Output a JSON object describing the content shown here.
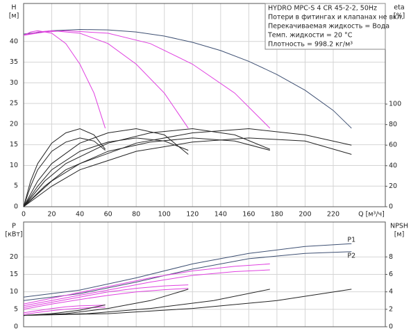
{
  "chart_data": [
    {
      "type": "line",
      "ylabel": "H",
      "yunit": "[м]",
      "y2label": "eta",
      "y2unit": "[%]",
      "xlabel": "Q [м³/ч]",
      "annotations": [
        "HYDRO MPC-S 4 CR 45-2-2, 50Hz",
        "Потери в фитингах и клапанах не вкл.",
        "Перекачиваемая жидкость = Вода",
        "Темп. жидкости = 20 °C",
        "Плотность = 998.2 кг/м³"
      ],
      "xlim": [
        0,
        257
      ],
      "xticks": [
        0,
        20,
        40,
        60,
        80,
        100,
        120,
        140,
        160,
        180,
        200,
        220
      ],
      "ylim": [
        0,
        49.2
      ],
      "yticks": [
        0,
        5,
        10,
        15,
        20,
        25,
        30,
        35,
        40
      ],
      "y2lim": [
        0,
        198
      ],
      "y2ticks": [
        0,
        20,
        40,
        60,
        80,
        100
      ],
      "grid": true,
      "series": [
        {
          "color": "#3d4f72",
          "x": [
            0,
            20,
            40,
            60,
            80,
            100,
            120,
            140,
            160,
            180,
            200,
            220,
            233
          ],
          "values": [
            41.8,
            42.6,
            42.9,
            42.8,
            42.3,
            41.3,
            39.8,
            37.8,
            35.2,
            32,
            28.2,
            23.3,
            19
          ]
        },
        {
          "color": "#e040e0",
          "x": [
            0,
            5,
            10,
            20,
            30,
            40,
            50,
            58
          ],
          "values": [
            41.5,
            42.3,
            42.6,
            42,
            39.5,
            34.5,
            27.5,
            19
          ]
        },
        {
          "color": "#e040e0",
          "x": [
            0,
            10,
            20,
            40,
            60,
            80,
            100,
            117
          ],
          "values": [
            41.5,
            42.3,
            42.6,
            42,
            39.5,
            34.5,
            27.5,
            19
          ]
        },
        {
          "color": "#e040e0",
          "x": [
            0,
            15,
            30,
            60,
            90,
            120,
            150,
            175
          ],
          "values": [
            41.5,
            42.3,
            42.6,
            42,
            39.5,
            34.5,
            27.5,
            19
          ]
        },
        {
          "color": "#222222",
          "axis": "y2",
          "x": [
            0,
            5,
            10,
            20,
            30,
            40,
            50,
            58
          ],
          "values": [
            0,
            25,
            42,
            62,
            72,
            76,
            70,
            56
          ]
        },
        {
          "color": "#222222",
          "axis": "y2",
          "x": [
            0,
            5,
            10,
            20,
            30,
            40,
            50,
            58
          ],
          "values": [
            0,
            20,
            36,
            54,
            63,
            67,
            64,
            55
          ]
        },
        {
          "color": "#222222",
          "axis": "y2",
          "x": [
            0,
            10,
            20,
            40,
            60,
            80,
            100,
            117
          ],
          "values": [
            0,
            25,
            42,
            62,
            72,
            76,
            70,
            51
          ]
        },
        {
          "color": "#222222",
          "axis": "y2",
          "x": [
            0,
            10,
            20,
            40,
            60,
            80,
            100,
            117
          ],
          "values": [
            0,
            20,
            36,
            54,
            63,
            67,
            64,
            55
          ]
        },
        {
          "color": "#222222",
          "axis": "y2",
          "x": [
            0,
            15,
            30,
            60,
            90,
            120,
            150,
            175
          ],
          "values": [
            0,
            25,
            42,
            62,
            72,
            76,
            70,
            56
          ]
        },
        {
          "color": "#222222",
          "axis": "y2",
          "x": [
            0,
            15,
            30,
            60,
            90,
            120,
            150,
            175
          ],
          "values": [
            0,
            20,
            36,
            54,
            63,
            67,
            64,
            55
          ]
        },
        {
          "color": "#222222",
          "axis": "y2",
          "x": [
            0,
            20,
            40,
            80,
            120,
            160,
            200,
            233
          ],
          "values": [
            0,
            25,
            42,
            62,
            72,
            76,
            70,
            60
          ]
        },
        {
          "color": "#222222",
          "axis": "y2",
          "x": [
            0,
            20,
            40,
            80,
            120,
            160,
            200,
            233
          ],
          "values": [
            0,
            20,
            36,
            54,
            63,
            67,
            64,
            51
          ]
        }
      ]
    },
    {
      "type": "line",
      "ylabel": "P",
      "yunit": "[кВт]",
      "y2label": "NPSH",
      "y2unit": "[м]",
      "xlim": [
        0,
        257
      ],
      "xticks": [
        0,
        20,
        40,
        60,
        80,
        100,
        120,
        140,
        160,
        180,
        200,
        220
      ],
      "ylim": [
        0,
        30
      ],
      "yticks": [
        0,
        5,
        10,
        15,
        20
      ],
      "y2lim": [
        0,
        12
      ],
      "y2ticks": [
        0,
        2,
        4,
        6,
        8
      ],
      "grid": true,
      "series": [
        {
          "name": "P1",
          "color": "#3d4f72",
          "x": [
            0,
            40,
            80,
            120,
            160,
            200,
            233
          ],
          "values": [
            8.5,
            10.5,
            14,
            18,
            21,
            23,
            23.8
          ]
        },
        {
          "name": "P2",
          "color": "#3d4f72",
          "x": [
            0,
            40,
            80,
            120,
            160,
            200,
            233
          ],
          "values": [
            7.5,
            9.5,
            12.8,
            16.5,
            19.5,
            21,
            21.5
          ]
        },
        {
          "color": "#e040e0",
          "x": [
            0,
            30,
            60,
            90,
            120,
            150,
            175
          ],
          "values": [
            6.5,
            9,
            11.5,
            14,
            16,
            17.3,
            18
          ]
        },
        {
          "color": "#e040e0",
          "x": [
            0,
            30,
            60,
            90,
            120,
            150,
            175
          ],
          "values": [
            6,
            8.3,
            10.5,
            12.8,
            14.7,
            15.8,
            16.3
          ]
        },
        {
          "color": "#e040e0",
          "x": [
            0,
            20,
            40,
            60,
            80,
            100,
            117
          ],
          "values": [
            5.5,
            7,
            8.5,
            10,
            11,
            11.7,
            12
          ]
        },
        {
          "color": "#e040e0",
          "x": [
            0,
            20,
            40,
            60,
            80,
            100,
            117
          ],
          "values": [
            5,
            6.5,
            7.8,
            9,
            10,
            10.6,
            11
          ]
        },
        {
          "color": "#e040e0",
          "x": [
            0,
            10,
            20,
            30,
            40,
            50,
            58
          ],
          "values": [
            4,
            4.6,
            5.2,
            5.7,
            6,
            6.1,
            6.2
          ]
        },
        {
          "color": "#e040e0",
          "x": [
            0,
            10,
            20,
            30,
            40,
            50,
            58
          ],
          "values": [
            3.5,
            4.1,
            4.6,
            5,
            5.3,
            5.5,
            5.6
          ]
        },
        {
          "color": "#222222",
          "axis": "y2",
          "x": [
            0,
            20,
            40,
            58
          ],
          "values": [
            1.3,
            1.5,
            1.9,
            2.5
          ]
        },
        {
          "color": "#222222",
          "axis": "y2",
          "x": [
            0,
            30,
            60,
            90,
            117
          ],
          "values": [
            1.3,
            1.5,
            2.1,
            3,
            4.3
          ]
        },
        {
          "color": "#222222",
          "axis": "y2",
          "x": [
            0,
            45,
            90,
            135,
            175
          ],
          "values": [
            1.3,
            1.5,
            2.1,
            3,
            4.3
          ]
        },
        {
          "color": "#222222",
          "axis": "y2",
          "x": [
            0,
            60,
            120,
            180,
            233
          ],
          "values": [
            1.3,
            1.5,
            2.1,
            3,
            4.3
          ]
        }
      ]
    }
  ]
}
